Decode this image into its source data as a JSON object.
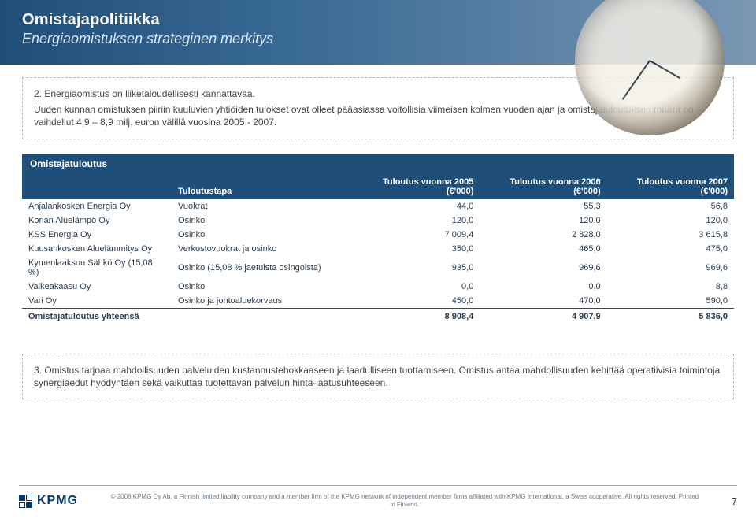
{
  "header": {
    "title": "Omistajapolitiikka",
    "subtitle": "Energiaomistuksen strateginen merkitys"
  },
  "intro": {
    "line1": "2. Energiaomistus on liiketaloudellisesti kannattavaa.",
    "line2": "Uuden kunnan omistuksen piiriin kuuluvien yhtiöiden tulokset ovat olleet pääasiassa voitollisia viimeisen kolmen vuoden ajan ja omistajatuloutuksen määrä on vaihdellut 4,9 – 8,9 milj. euron välillä vuosina 2005 - 2007."
  },
  "table": {
    "caption": "Omistajatuloutus",
    "headers": {
      "method": "Tuloutustapa",
      "y2005_a": "Tuloutus vuonna 2005",
      "y2005_b": "(€'000)",
      "y2006_a": "Tuloutus vuonna 2006",
      "y2006_b": "(€'000)",
      "y2007_a": "Tuloutus vuonna 2007",
      "y2007_b": "(€'000)"
    },
    "rows": [
      {
        "company": "Anjalankosken Energia Oy",
        "method": "Vuokrat",
        "v2005": "44,0",
        "v2006": "55,3",
        "v2007": "56,8"
      },
      {
        "company": "Korian Aluelämpö Oy",
        "method": "Osinko",
        "v2005": "120,0",
        "v2006": "120,0",
        "v2007": "120,0"
      },
      {
        "company": "KSS Energia Oy",
        "method": "Osinko",
        "v2005": "7 009,4",
        "v2006": "2 828,0",
        "v2007": "3 615,8"
      },
      {
        "company": "Kuusankosken Aluelämmitys Oy",
        "method": "Verkostovuokrat ja osinko",
        "v2005": "350,0",
        "v2006": "465,0",
        "v2007": "475,0"
      },
      {
        "company": "Kymenlaakson Sähkö Oy (15,08 %)",
        "method": "Osinko (15,08 % jaetuista osingoista)",
        "v2005": "935,0",
        "v2006": "969,6",
        "v2007": "969,6"
      },
      {
        "company": "Valkeakaasu Oy",
        "method": "Osinko",
        "v2005": "0,0",
        "v2006": "0,0",
        "v2007": "8,8"
      },
      {
        "company": "Vari Oy",
        "method": "Osinko ja johtoaluekorvaus",
        "v2005": "450,0",
        "v2006": "470,0",
        "v2007": "590,0"
      }
    ],
    "total": {
      "label": "Omistajatuloutus yhteensä",
      "v2005": "8 908,4",
      "v2006": "4 907,9",
      "v2007": "5 836,0"
    }
  },
  "note3": "3. Omistus tarjoaa mahdollisuuden palveluiden kustannustehokkaaseen ja laadulliseen tuottamiseen. Omistus antaa mahdollisuuden kehittää operatiivisia toimintoja synergiaedut hyödyntäen sekä vaikuttaa tuotettavan palvelun hinta-laatusuhteeseen.",
  "footer": {
    "logo_text": "KPMG",
    "copyright": "© 2008 KPMG Oy Ab, a Finnish limited liability company and a member firm of the KPMG network of independent member firms affiliated with KPMG International, a Swiss cooperative. All rights reserved. Printed in Finland.",
    "page": "7"
  },
  "colors": {
    "brand_dark": "#1f4e79",
    "dash_border": "#a9bdcf",
    "text": "#333333"
  }
}
